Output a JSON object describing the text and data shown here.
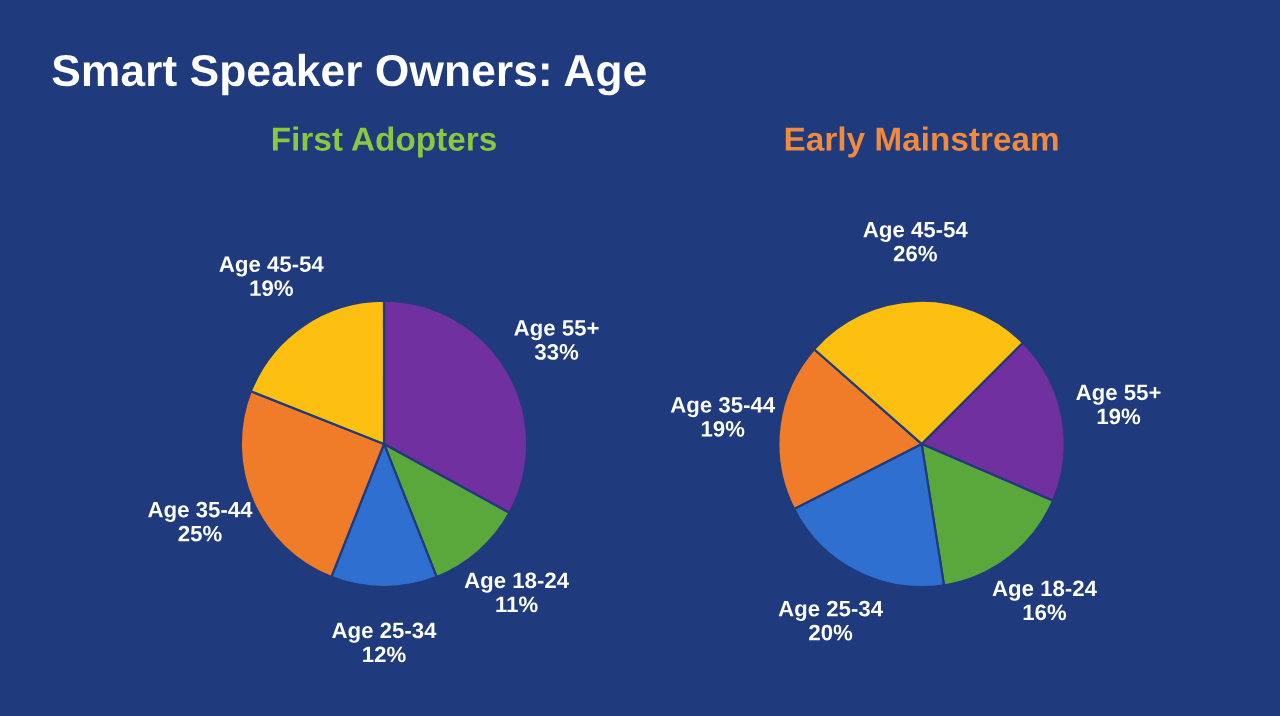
{
  "chart_data": [
    {
      "type": "pie",
      "title": "Smart Speaker Owners: Age",
      "subtitle": "First Adopters",
      "categories": [
        "Age 55+",
        "Age 18-24",
        "Age 25-34",
        "Age 35-44",
        "Age 45-54"
      ],
      "values": [
        33,
        11,
        12,
        25,
        19
      ],
      "value_labels": [
        "33%",
        "11%",
        "12%",
        "25%",
        "19%"
      ],
      "colors": [
        "#7030a0",
        "#5aa83c",
        "#2f6fd0",
        "#f07c2a",
        "#fdc010"
      ]
    },
    {
      "type": "pie",
      "subtitle": "Early Mainstream",
      "categories": [
        "Age 55+",
        "Age 18-24",
        "Age 25-34",
        "Age 35-44",
        "Age 45-54"
      ],
      "values": [
        19,
        16,
        20,
        19,
        26
      ],
      "value_labels": [
        "19%",
        "16%",
        "20%",
        "19%",
        "26%"
      ],
      "colors": [
        "#7030a0",
        "#5aa83c",
        "#2f6fd0",
        "#f07c2a",
        "#fdc010"
      ]
    }
  ]
}
